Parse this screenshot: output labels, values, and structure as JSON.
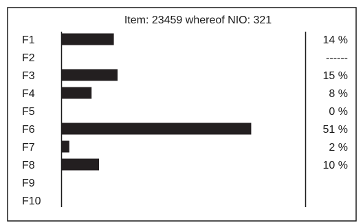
{
  "header": {
    "item_label": "Item:",
    "item_count": "23459",
    "nio_label": "whereof NIO:",
    "nio_count": "321"
  },
  "chart_data": {
    "type": "bar",
    "orientation": "horizontal",
    "title": "Item:  23459 whereof NIO:  321",
    "categories": [
      "F1",
      "F2",
      "F3",
      "F4",
      "F5",
      "F6",
      "F7",
      "F8",
      "F9",
      "F10"
    ],
    "values": [
      14,
      null,
      15,
      8,
      0,
      51,
      2,
      10,
      null,
      null
    ],
    "value_labels": [
      "14 %",
      "------",
      "15 %",
      "8 %",
      "0 %",
      "51 %",
      "2 %",
      "10 %",
      "",
      ""
    ],
    "unit": "%",
    "xlim": [
      0,
      100
    ],
    "bar_color": "#231f20",
    "grid": false,
    "legend": "none"
  }
}
